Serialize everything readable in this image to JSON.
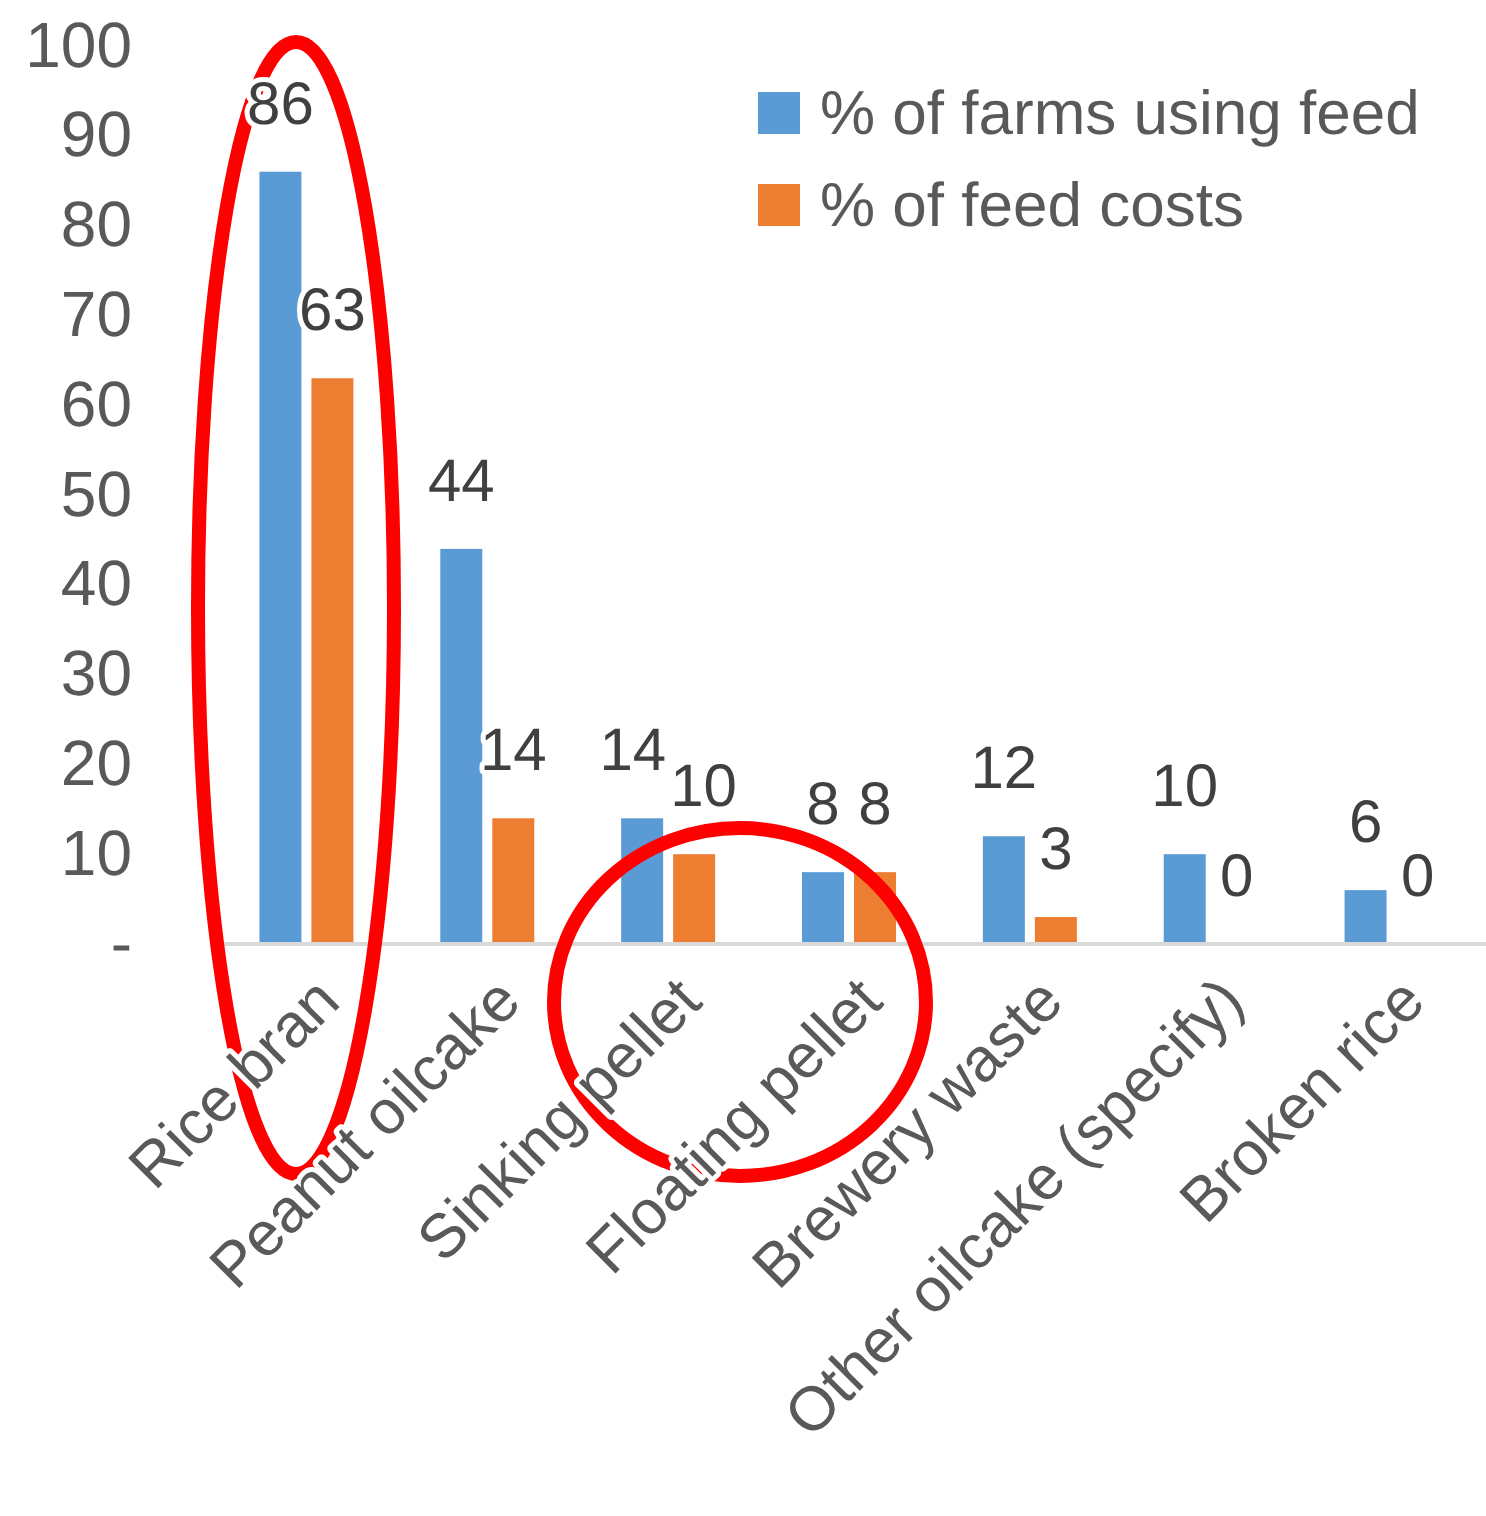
{
  "chart_data": {
    "type": "bar",
    "categories": [
      "Rice bran",
      "Peanut oilcake",
      "Sinking pellet",
      "Floating pellet",
      "Brewery waste",
      "Other oilcake (specify)",
      "Broken rice"
    ],
    "series": [
      {
        "name": "% of farms using feed",
        "color": "#5b9bd5",
        "values": [
          86,
          44,
          14,
          8,
          12,
          10,
          6
        ]
      },
      {
        "name": "% of feed costs",
        "color": "#ed7d31",
        "values": [
          63,
          14,
          10,
          8,
          3,
          0,
          0
        ]
      }
    ],
    "ylim": [
      0,
      100
    ],
    "yticks": [
      {
        "value": 0,
        "label": "-"
      },
      10,
      20,
      30,
      40,
      50,
      60,
      70,
      80,
      90,
      100
    ],
    "data_labels": true,
    "legend": "top right"
  }
}
